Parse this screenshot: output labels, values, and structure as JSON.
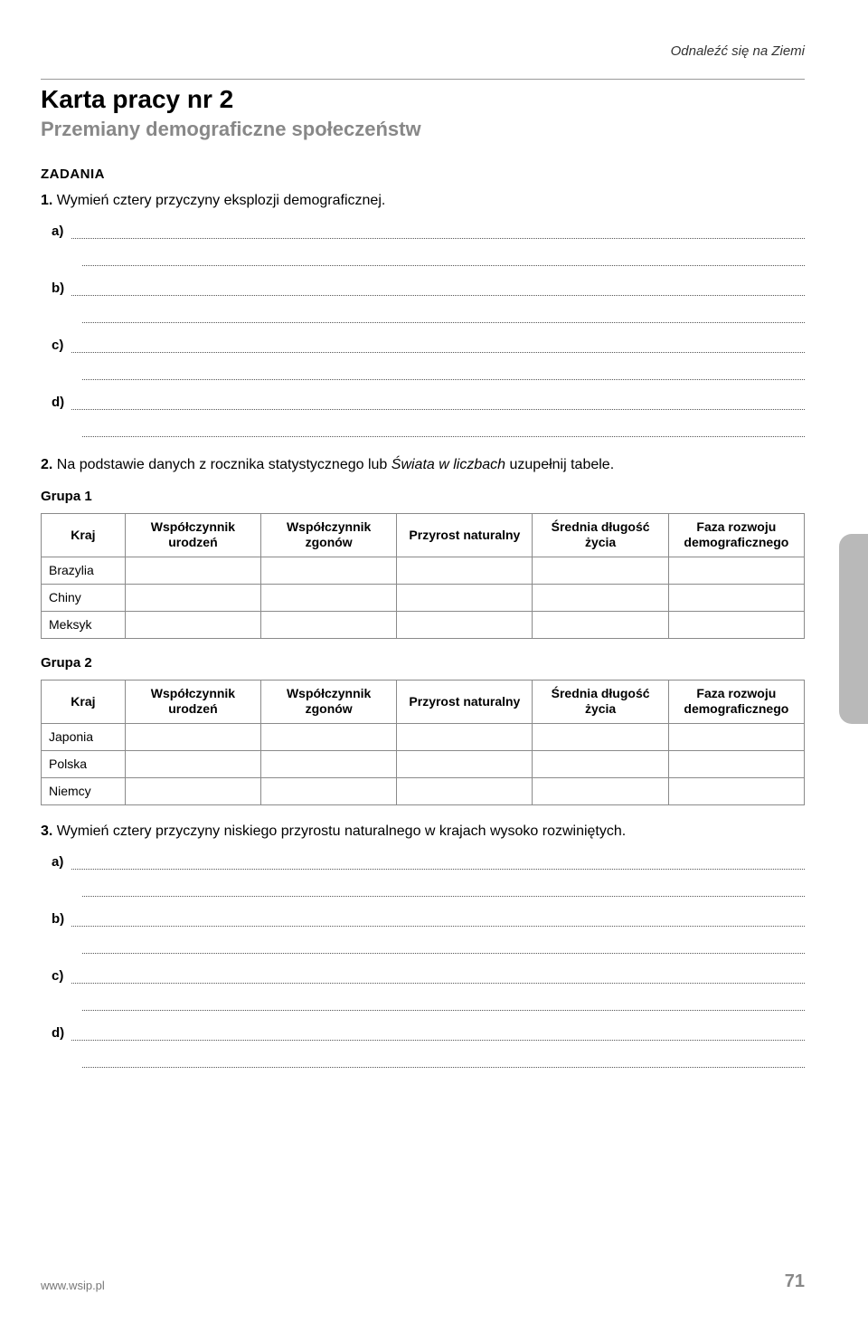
{
  "running_head": "Odnaleźć się na Ziemi",
  "title": "Karta pracy nr 2",
  "subtitle": "Przemiany demograficzne społeczeństw",
  "section_label": "ZADANIA",
  "task1": {
    "num": "1.",
    "text": "Wymień cztery przyczyny eksplozji demograficznej."
  },
  "task1_labels": {
    "a": "a)",
    "b": "b)",
    "c": "c)",
    "d": "d)"
  },
  "task2": {
    "num": "2.",
    "text_before": "Na podstawie danych z rocznika statystycznego lub ",
    "italic": "Świata w liczbach",
    "text_after": " uzupełnij tabele."
  },
  "group1_label": "Grupa 1",
  "group2_label": "Grupa 2",
  "table_headers": {
    "kraj": "Kraj",
    "urodzen": "Współczynnik urodzeń",
    "zgonow": "Współczynnik zgonów",
    "przyrost": "Przyrost naturalny",
    "dlugosc": "Średnia długość życia",
    "faza": "Faza rozwoju demograficznego"
  },
  "group1_rows": [
    "Brazylia",
    "Chiny",
    "Meksyk"
  ],
  "group2_rows": [
    "Japonia",
    "Polska",
    "Niemcy"
  ],
  "task3": {
    "num": "3.",
    "text": "Wymień cztery przyczyny niskiego przyrostu naturalnego w krajach wysoko rozwiniętych."
  },
  "task3_labels": {
    "a": "a)",
    "b": "b)",
    "c": "c)",
    "d": "d)"
  },
  "footer": {
    "url": "www.wsip.pl",
    "page": "71"
  },
  "colors": {
    "subtitle": "#888888",
    "rule": "#999999",
    "dotted": "#555555",
    "table_border": "#8a8a8a",
    "tab_bg": "#b9b9b9",
    "footer_text": "#777777",
    "pagenum": "#888888"
  }
}
